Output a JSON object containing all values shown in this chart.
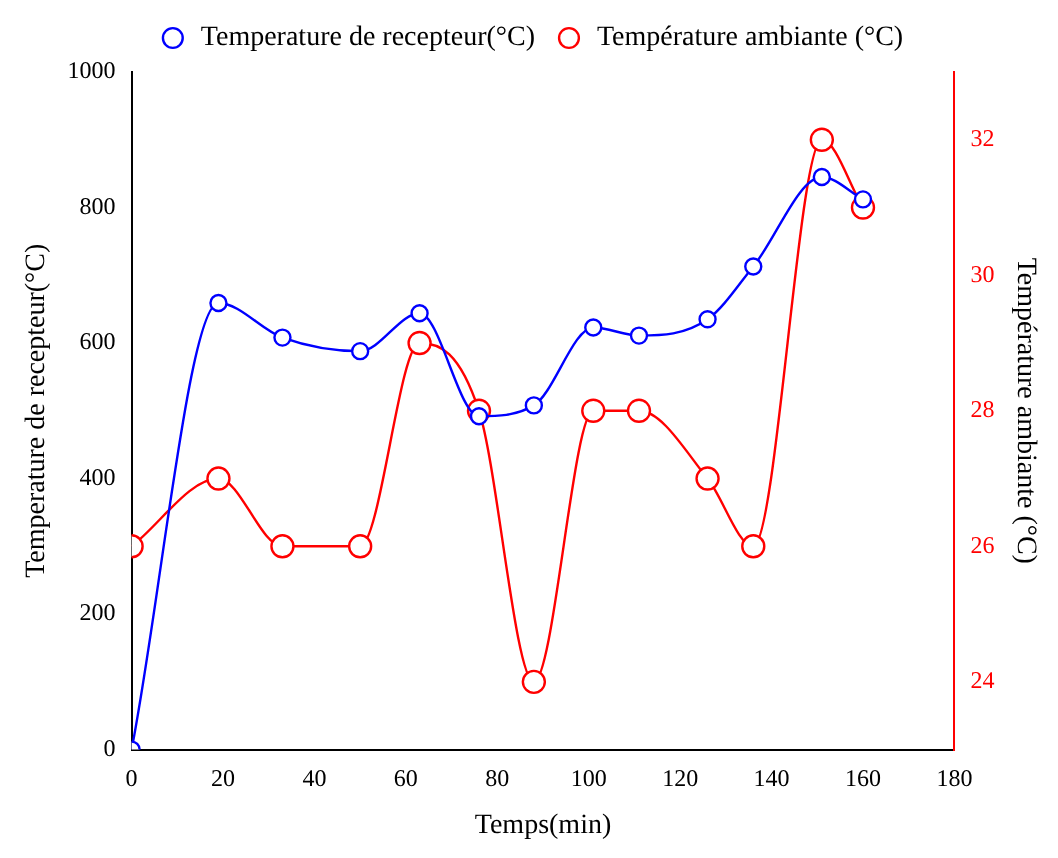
{
  "chart_data": {
    "type": "line",
    "xlabel": "Temps(min)",
    "ylabel": "Temperature de recepteur(°C)",
    "y2label": "Température ambiante (°C)",
    "x": [
      0,
      19,
      33,
      50,
      63,
      76,
      88,
      101,
      111,
      126,
      136,
      151,
      160
    ],
    "series": [
      {
        "name": "Temperature de recepteur(°C)",
        "color": "#0000ff",
        "values": [
          0,
          659,
          608,
          588,
          644,
          492,
          508,
          623,
          611,
          635,
          713,
          845,
          812
        ]
      },
      {
        "name": "Température ambiante (°C)",
        "color": "#ff0000",
        "axis": "y2",
        "values": [
          26,
          27,
          26,
          26,
          29,
          28,
          24,
          28,
          28,
          27,
          26,
          32,
          31
        ]
      }
    ],
    "xlim": [
      0,
      180
    ],
    "xticks": [
      0,
      20,
      40,
      60,
      80,
      100,
      120,
      140,
      160,
      180
    ],
    "ylim": [
      0,
      1000
    ],
    "yticks": [
      0,
      200,
      400,
      600,
      800,
      1000
    ],
    "y2lim": [
      23,
      33
    ],
    "y2ticks": [
      24,
      26,
      28,
      30,
      32
    ],
    "legend": "top",
    "marker": "circle",
    "line_style": "solid",
    "grid": false
  }
}
